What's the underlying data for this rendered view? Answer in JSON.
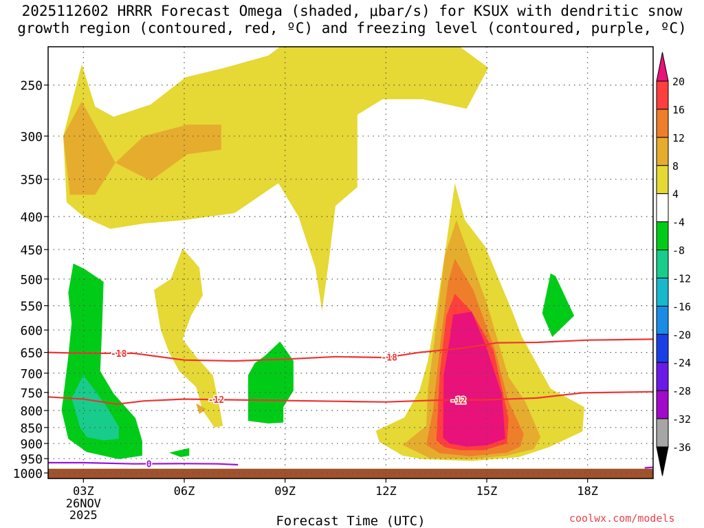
{
  "title": {
    "line1": "2025112602 HRRR Forecast Omega (shaded, μbar/s) for KSUX with dendritic snow",
    "line2": "growth region (contoured, red, ºC) and freezing level (contoured, purple, ºC)"
  },
  "credit": "coolwx.com/models",
  "chart_data": {
    "type": "filled-contour",
    "title": "2025112602 HRRR Forecast Omega (shaded, μbar/s) for KSUX with dendritic snow growth region (contoured, red, ºC) and freezing level (contoured, purple, ºC)",
    "xlabel": "Forecast Time (UTC)",
    "ylabel": "",
    "x_unit": "forecast hour",
    "xlim": [
      1.95,
      19.95
    ],
    "ylim": [
      1020,
      218
    ],
    "x_ticks": [
      {
        "x": 3,
        "label": "03Z",
        "sub": [
          "26NOV",
          "2025"
        ]
      },
      {
        "x": 6,
        "label": "06Z"
      },
      {
        "x": 9,
        "label": "09Z"
      },
      {
        "x": 12,
        "label": "12Z"
      },
      {
        "x": 15,
        "label": "15Z"
      },
      {
        "x": 18,
        "label": "18Z"
      }
    ],
    "y_ticks": [
      250,
      300,
      350,
      400,
      450,
      500,
      550,
      600,
      650,
      700,
      750,
      800,
      850,
      900,
      950,
      1000
    ],
    "colorbar": {
      "levels": [
        20,
        16,
        12,
        8,
        4,
        -4,
        -8,
        -12,
        -16,
        -20,
        -24,
        -28,
        -32,
        -36
      ],
      "colors": [
        "#e8127a",
        "#ff3e3e",
        "#ef7e2a",
        "#e6ac2e",
        "#e6d835",
        "#ffffff",
        "#00cc18",
        "#18cc8c",
        "#18b8cc",
        "#1a8ce6",
        "#1a3ee6",
        "#6a1ae6",
        "#a00ac8",
        "#a6a6a6",
        "#000000"
      ]
    },
    "ground_color": "#a0522d",
    "surface_pressure": 985,
    "shaded_regions": [
      {
        "value": 4,
        "color": "#e6d835",
        "points": [
          [
            2.5,
            380
          ],
          [
            2.4,
            300
          ],
          [
            2.95,
            232
          ],
          [
            3.35,
            270
          ],
          [
            3.9,
            280
          ],
          [
            5.0,
            268
          ],
          [
            6.05,
            243
          ],
          [
            7.2,
            235
          ],
          [
            8.5,
            225
          ],
          [
            9.0,
            215
          ],
          [
            10.5,
            218
          ],
          [
            11.5,
            218
          ],
          [
            12.35,
            218
          ],
          [
            13.5,
            218
          ],
          [
            14.2,
            218
          ],
          [
            15.05,
            235
          ],
          [
            14.4,
            272
          ],
          [
            13.1,
            263
          ],
          [
            11.9,
            263
          ],
          [
            11.15,
            278
          ],
          [
            11.15,
            360
          ],
          [
            10.5,
            385
          ],
          [
            10.3,
            470
          ],
          [
            10.1,
            560
          ],
          [
            9.9,
            480
          ],
          [
            9.4,
            400
          ],
          [
            8.8,
            355
          ],
          [
            7.5,
            395
          ],
          [
            6.0,
            405
          ],
          [
            4.8,
            410
          ],
          [
            3.8,
            418
          ],
          [
            3.0,
            400
          ]
        ]
      },
      {
        "value": 4,
        "color": "#e6d835",
        "points": [
          [
            5.1,
            520
          ],
          [
            5.6,
            500
          ],
          [
            5.95,
            448
          ],
          [
            6.45,
            480
          ],
          [
            6.55,
            530
          ],
          [
            6.2,
            570
          ],
          [
            5.95,
            620
          ],
          [
            6.35,
            660
          ],
          [
            6.85,
            705
          ],
          [
            7.05,
            790
          ],
          [
            7.15,
            845
          ],
          [
            6.9,
            850
          ],
          [
            6.55,
            800
          ],
          [
            6.35,
            735
          ],
          [
            5.85,
            695
          ],
          [
            5.55,
            650
          ],
          [
            5.3,
            600
          ]
        ]
      },
      {
        "value": 4,
        "color": "#e6d835",
        "points": [
          [
            11.7,
            860
          ],
          [
            12.55,
            820
          ],
          [
            13.0,
            745
          ],
          [
            13.25,
            670
          ],
          [
            13.5,
            560
          ],
          [
            13.8,
            440
          ],
          [
            14.05,
            355
          ],
          [
            14.35,
            405
          ],
          [
            14.95,
            445
          ],
          [
            15.75,
            560
          ],
          [
            16.05,
            615
          ],
          [
            16.9,
            740
          ],
          [
            17.9,
            790
          ],
          [
            17.85,
            862
          ],
          [
            16.85,
            912
          ],
          [
            15.95,
            945
          ],
          [
            14.55,
            958
          ],
          [
            13.1,
            952
          ],
          [
            12.5,
            940
          ],
          [
            11.8,
            895
          ]
        ]
      },
      {
        "value": 8,
        "color": "#e6ac2e",
        "points": [
          [
            2.6,
            370
          ],
          [
            2.4,
            300
          ],
          [
            2.95,
            265
          ],
          [
            3.95,
            330
          ],
          [
            3.35,
            370
          ]
        ]
      },
      {
        "value": 8,
        "color": "#e6ac2e",
        "points": [
          [
            3.95,
            330
          ],
          [
            4.8,
            300
          ],
          [
            6.1,
            288
          ],
          [
            7.1,
            288
          ],
          [
            7.1,
            315
          ],
          [
            6.1,
            320
          ],
          [
            5.0,
            352
          ]
        ]
      },
      {
        "value": 8,
        "color": "#e6ac2e",
        "points": [
          [
            6.35,
            780
          ],
          [
            6.65,
            795
          ],
          [
            6.45,
            810
          ]
        ]
      },
      {
        "value": 8,
        "color": "#e6ac2e",
        "points": [
          [
            12.5,
            905
          ],
          [
            13.2,
            845
          ],
          [
            13.25,
            740
          ],
          [
            13.45,
            620
          ],
          [
            13.75,
            460
          ],
          [
            14.1,
            405
          ],
          [
            14.45,
            455
          ],
          [
            15.0,
            545
          ],
          [
            15.65,
            710
          ],
          [
            16.15,
            775
          ],
          [
            16.6,
            880
          ],
          [
            16.4,
            918
          ],
          [
            15.6,
            940
          ],
          [
            14.5,
            952
          ],
          [
            13.3,
            948
          ]
        ]
      },
      {
        "value": 12,
        "color": "#ef7e2a",
        "points": [
          [
            13.2,
            905
          ],
          [
            13.4,
            800
          ],
          [
            13.6,
            640
          ],
          [
            13.85,
            505
          ],
          [
            14.05,
            465
          ],
          [
            14.6,
            520
          ],
          [
            15.25,
            645
          ],
          [
            15.65,
            775
          ],
          [
            16.1,
            870
          ],
          [
            16.0,
            910
          ],
          [
            15.6,
            930
          ],
          [
            14.5,
            942
          ],
          [
            13.6,
            932
          ]
        ]
      },
      {
        "value": 16,
        "color": "#ff3e3e",
        "points": [
          [
            13.5,
            890
          ],
          [
            13.6,
            700
          ],
          [
            13.8,
            570
          ],
          [
            14.05,
            527
          ],
          [
            14.55,
            562
          ],
          [
            15.2,
            645
          ],
          [
            15.65,
            825
          ],
          [
            15.6,
            900
          ],
          [
            14.9,
            922
          ],
          [
            14.2,
            922
          ],
          [
            13.75,
            912
          ]
        ]
      },
      {
        "value": 20,
        "color": "#e8127a",
        "points": [
          [
            13.7,
            882
          ],
          [
            13.72,
            705
          ],
          [
            13.9,
            620
          ],
          [
            14.0,
            568
          ],
          [
            14.55,
            562
          ],
          [
            14.95,
            630
          ],
          [
            15.45,
            755
          ],
          [
            15.55,
            885
          ],
          [
            15.0,
            906
          ],
          [
            14.4,
            910
          ],
          [
            13.9,
            900
          ]
        ]
      },
      {
        "value": -4,
        "color": "#00cc18",
        "points": [
          [
            2.55,
            660
          ],
          [
            2.65,
            585
          ],
          [
            2.55,
            525
          ],
          [
            2.7,
            473
          ],
          [
            3.05,
            483
          ],
          [
            3.6,
            505
          ],
          [
            3.55,
            605
          ],
          [
            3.5,
            695
          ],
          [
            3.9,
            753
          ],
          [
            4.55,
            822
          ],
          [
            4.75,
            892
          ],
          [
            4.75,
            940
          ],
          [
            4.05,
            952
          ],
          [
            3.1,
            928
          ],
          [
            2.55,
            885
          ],
          [
            2.35,
            800
          ]
        ]
      },
      {
        "value": -4,
        "color": "#00cc18",
        "points": [
          [
            7.9,
            830
          ],
          [
            7.9,
            705
          ],
          [
            8.1,
            675
          ],
          [
            8.4,
            658
          ],
          [
            8.85,
            625
          ],
          [
            9.25,
            670
          ],
          [
            9.25,
            745
          ],
          [
            8.95,
            790
          ],
          [
            8.95,
            835
          ],
          [
            8.5,
            838
          ]
        ]
      },
      {
        "value": -4,
        "color": "#00cc18",
        "points": [
          [
            5.55,
            930
          ],
          [
            6.15,
            915
          ],
          [
            6.15,
            940
          ],
          [
            5.9,
            945
          ]
        ]
      },
      {
        "value": -4,
        "color": "#00cc18",
        "points": [
          [
            16.65,
            565
          ],
          [
            16.9,
            490
          ],
          [
            17.05,
            495
          ],
          [
            17.6,
            570
          ],
          [
            16.95,
            615
          ]
        ]
      },
      {
        "value": -8,
        "color": "#18cc8c",
        "points": [
          [
            2.9,
            850
          ],
          [
            2.65,
            765
          ],
          [
            3.0,
            705
          ],
          [
            3.3,
            740
          ],
          [
            3.7,
            790
          ],
          [
            4.05,
            848
          ],
          [
            4.05,
            885
          ],
          [
            3.6,
            890
          ],
          [
            3.1,
            880
          ]
        ]
      }
    ],
    "contours": [
      {
        "name": "dendritic-growth",
        "value": -18,
        "label": "-18",
        "color": "#ee3333",
        "points": [
          [
            1.95,
            650
          ],
          [
            3.0,
            652
          ],
          [
            4.5,
            652
          ],
          [
            6.0,
            668
          ],
          [
            7.5,
            670
          ],
          [
            9.0,
            666
          ],
          [
            10.5,
            660
          ],
          [
            12.0,
            662
          ],
          [
            13.0,
            650
          ],
          [
            14.3,
            640
          ],
          [
            15.3,
            628
          ],
          [
            16.5,
            627
          ],
          [
            18.0,
            622
          ],
          [
            19.95,
            620
          ]
        ],
        "labels_at": [
          4.05,
          12.1
        ]
      },
      {
        "name": "dendritic-growth",
        "value": -12,
        "label": "-12",
        "color": "#ee3333",
        "points": [
          [
            1.95,
            762
          ],
          [
            3.0,
            768
          ],
          [
            4.0,
            782
          ],
          [
            4.8,
            773
          ],
          [
            6.0,
            768
          ],
          [
            7.5,
            770
          ],
          [
            9.0,
            772
          ],
          [
            10.5,
            774
          ],
          [
            12.0,
            776
          ],
          [
            13.5,
            771
          ],
          [
            15.0,
            770
          ],
          [
            16.5,
            765
          ],
          [
            17.85,
            751
          ],
          [
            19.95,
            748
          ]
        ],
        "labels_at": [
          6.95,
          14.15
        ]
      },
      {
        "name": "freezing-level",
        "value": 0,
        "label": "0",
        "color": "#9a10e0",
        "points": [
          [
            1.95,
            964
          ],
          [
            3.0,
            964
          ],
          [
            4.5,
            968
          ],
          [
            6.0,
            967
          ],
          [
            7.0,
            968
          ],
          [
            7.6,
            971
          ]
        ],
        "labels_at": [
          4.95
        ]
      },
      {
        "name": "freezing-level-right",
        "value": 0,
        "label": "",
        "color": "#9a10e0",
        "points": [
          [
            19.7,
            982
          ],
          [
            19.95,
            980
          ]
        ],
        "labels_at": []
      }
    ]
  }
}
